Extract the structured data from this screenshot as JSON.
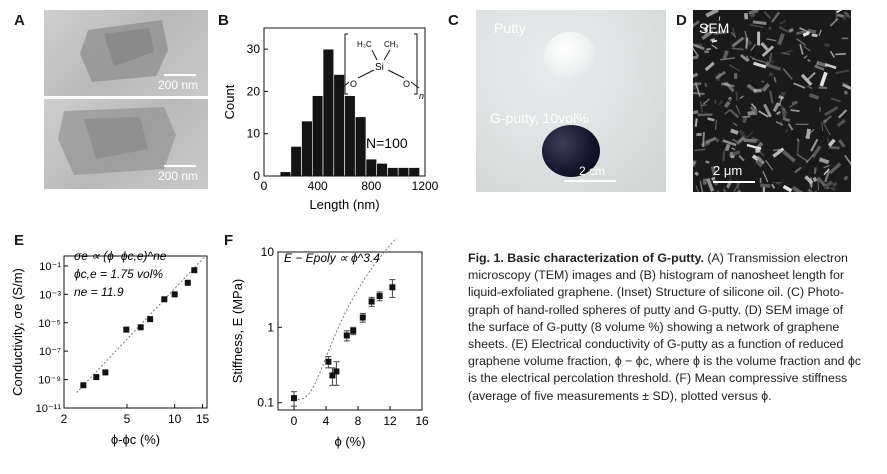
{
  "panels": {
    "A": {
      "label": "A",
      "scale_top": "200 nm",
      "scale_bottom": "200 nm"
    },
    "B": {
      "label": "B",
      "n_text": "N=100",
      "struct_ch3_left": "H₃C",
      "struct_ch3_right": "CH₃",
      "struct_si": "Si",
      "struct_o_left": "O",
      "struct_o_right": "O",
      "struct_n": "n"
    },
    "C": {
      "label": "C",
      "putty_label": "Putty",
      "gputty_label": "G-putty, 10vol%",
      "scale": "2 cm"
    },
    "D": {
      "label": "D",
      "sem_label": "SEM",
      "scale": "2 μm"
    },
    "E": {
      "label": "E",
      "eq1": "σe ∝ (ϕ−ϕc,e)^ne",
      "eq2": "ϕc,e = 1.75 vol%",
      "eq3": "ne = 11.9"
    },
    "F": {
      "label": "F",
      "eq": "E − Epoly ∝ ϕ^3.4"
    }
  },
  "chart_data": [
    {
      "id": "B",
      "type": "bar",
      "xlabel": "Length (nm)",
      "ylabel": "Count",
      "xlim": [
        0,
        1200
      ],
      "ylim": [
        0,
        35
      ],
      "xticks": [
        "0",
        "400",
        "800",
        "1200"
      ],
      "yticks": [
        "0",
        "10",
        "20",
        "30"
      ],
      "bin_width": 80,
      "bin_starts": [
        120,
        200,
        280,
        360,
        440,
        520,
        600,
        680,
        760,
        840,
        920,
        1000,
        1080
      ],
      "values": [
        1,
        7,
        13,
        19,
        30,
        24,
        19,
        14,
        4,
        3,
        2,
        2,
        2
      ],
      "annotation": "N=100"
    },
    {
      "id": "E",
      "type": "scatter",
      "xlabel": "ϕ-ϕc (%)",
      "ylabel": "Conductivity, σe (S/m)",
      "xscale": "log",
      "yscale": "log",
      "xlim": [
        2,
        16
      ],
      "ylim": [
        1e-11,
        0.5
      ],
      "xticks": [
        "2",
        "5",
        "10",
        "15"
      ],
      "yticks": [
        "10⁻¹",
        "10⁻³",
        "10⁻⁵",
        "10⁻⁷",
        "10⁻⁹",
        "10⁻¹¹"
      ],
      "x": [
        2.65,
        3.2,
        3.65,
        4.95,
        6.1,
        7.0,
        8.6,
        10.0,
        12.1,
        13.3
      ],
      "y": [
        4e-10,
        1.5e-09,
        3.2e-09,
        3.3e-06,
        4.8e-06,
        1.8e-05,
        0.00045,
        0.001,
        0.0065,
        0.05
      ],
      "fit": "dotted power law"
    },
    {
      "id": "F",
      "type": "scatter",
      "xlabel": "ϕ (%)",
      "ylabel": "Stiffness, E (MPa)",
      "xscale": "linear",
      "yscale": "log",
      "xlim": [
        -2,
        16
      ],
      "ylim": [
        0.08,
        10
      ],
      "xticks": [
        "0",
        "4",
        "8",
        "12",
        "16"
      ],
      "yticks": [
        "0.1",
        "1",
        "10"
      ],
      "x": [
        0,
        4.3,
        4.8,
        5.3,
        6.6,
        7.4,
        8.6,
        9.7,
        10.7,
        12.3
      ],
      "y": [
        0.115,
        0.35,
        0.23,
        0.26,
        0.78,
        0.9,
        1.35,
        2.2,
        2.6,
        3.4
      ],
      "err": [
        0.025,
        0.06,
        0.06,
        0.09,
        0.12,
        0.1,
        0.18,
        0.3,
        0.35,
        0.9
      ],
      "fit": "dotted E - Epoly ∝ ϕ^3.4"
    }
  ],
  "caption": {
    "title": "Fig. 1. Basic characterization of G-putty.",
    "l1": " (A) Transmission electron",
    "l2": "microscopy (TEM) images and (B) histogram of nanosheet length for",
    "l3": "liquid-exfoliated graphene. (Inset) Structure of silicone oil. (C) Photo-",
    "l4": "graph of hand-rolled spheres of putty and G-putty. (D) SEM image of",
    "l5": "the surface of G-putty (8 volume %) showing a network of graphene",
    "l6": "sheets. (E) Electrical conductivity of G-putty as a function of reduced",
    "l7": "graphene volume fraction, ϕ − ϕc, where ϕ is the volume fraction and ϕc",
    "l8": "is the electrical percolation threshold. (F) Mean compressive stiffness",
    "l9": "(average of five measurements ± SD), plotted versus ϕ."
  }
}
